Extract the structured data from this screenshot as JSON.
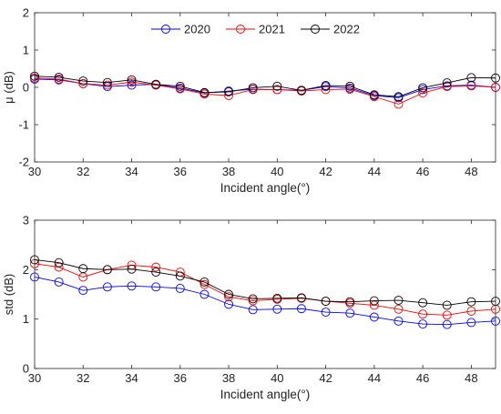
{
  "chart_data": [
    {
      "type": "line",
      "ylabel": "μ (dB)",
      "xlabel": "Incident angle(°)",
      "xlim": [
        30,
        49
      ],
      "ylim": [
        -2,
        2
      ],
      "xticks": [
        "30",
        "32",
        "34",
        "36",
        "38",
        "40",
        "42",
        "44",
        "46",
        "48"
      ],
      "yticks": [
        "-2",
        "-1",
        "0",
        "1",
        "2"
      ],
      "legend_position": "top-center",
      "x": [
        30,
        31,
        32,
        33,
        34,
        35,
        36,
        37,
        38,
        39,
        40,
        41,
        42,
        43,
        44,
        45,
        46,
        47,
        48,
        49
      ],
      "series": [
        {
          "name": "2020",
          "color": "#0000ff",
          "values": [
            0.22,
            0.2,
            0.1,
            0.02,
            0.06,
            0.08,
            -0.02,
            -0.15,
            -0.1,
            -0.05,
            -0.06,
            -0.08,
            0.02,
            -0.02,
            -0.22,
            -0.28,
            -0.06,
            0.04,
            0.06,
            0.0
          ]
        },
        {
          "name": "2021",
          "color": "#ff0000",
          "values": [
            0.25,
            0.22,
            0.1,
            0.06,
            0.14,
            0.06,
            -0.04,
            -0.18,
            -0.22,
            -0.06,
            -0.06,
            -0.1,
            -0.06,
            -0.05,
            -0.25,
            -0.45,
            -0.15,
            0.02,
            0.04,
            0.0
          ]
        },
        {
          "name": "2022",
          "color": "#000000",
          "values": [
            0.3,
            0.27,
            0.17,
            0.13,
            0.2,
            0.08,
            0.03,
            -0.14,
            -0.12,
            -0.01,
            0.03,
            -0.08,
            0.05,
            0.03,
            -0.2,
            -0.25,
            -0.01,
            0.12,
            0.26,
            0.25
          ]
        }
      ]
    },
    {
      "type": "line",
      "ylabel": "std (dB)",
      "xlabel": "Incident angle(°)",
      "xlim": [
        30,
        49
      ],
      "ylim": [
        0,
        3
      ],
      "xticks": [
        "30",
        "32",
        "34",
        "36",
        "38",
        "40",
        "42",
        "44",
        "46",
        "48"
      ],
      "yticks": [
        "0",
        "1",
        "2",
        "3"
      ],
      "x": [
        30,
        31,
        32,
        33,
        34,
        35,
        36,
        37,
        38,
        39,
        40,
        41,
        42,
        43,
        44,
        45,
        46,
        47,
        48,
        49
      ],
      "series": [
        {
          "name": "2020",
          "color": "#0000ff",
          "values": [
            1.85,
            1.75,
            1.58,
            1.65,
            1.67,
            1.65,
            1.62,
            1.5,
            1.3,
            1.19,
            1.2,
            1.21,
            1.14,
            1.12,
            1.04,
            0.96,
            0.9,
            0.89,
            0.93,
            0.96
          ]
        },
        {
          "name": "2021",
          "color": "#ff0000",
          "values": [
            2.12,
            2.05,
            1.85,
            2.0,
            2.09,
            2.05,
            1.95,
            1.7,
            1.45,
            1.37,
            1.4,
            1.42,
            1.36,
            1.32,
            1.28,
            1.2,
            1.1,
            1.08,
            1.16,
            1.2
          ]
        },
        {
          "name": "2022",
          "color": "#000000",
          "values": [
            2.2,
            2.14,
            2.02,
            2.0,
            2.01,
            1.95,
            1.87,
            1.75,
            1.5,
            1.41,
            1.42,
            1.43,
            1.36,
            1.35,
            1.37,
            1.38,
            1.33,
            1.28,
            1.35,
            1.36
          ]
        }
      ]
    }
  ]
}
